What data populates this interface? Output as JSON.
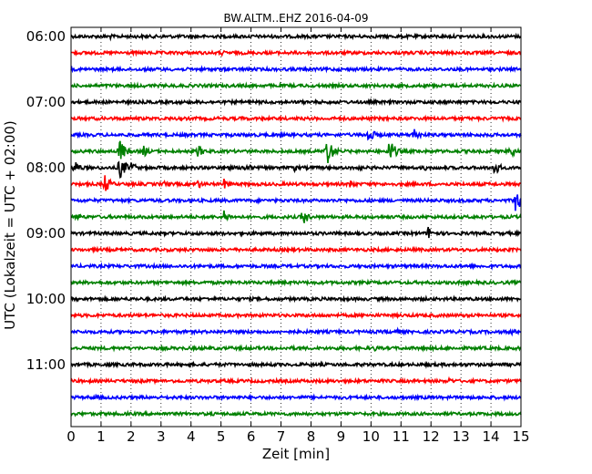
{
  "chart_data": {
    "type": "line",
    "title": "BW.ALTM..EHZ 2016-04-09",
    "xlabel": "Zeit  [min]",
    "ylabel": "UTC (Lokalzeit = UTC + 02:00)",
    "xlim": [
      0,
      15
    ],
    "x_ticks": [
      "0",
      "1",
      "2",
      "3",
      "4",
      "5",
      "6",
      "7",
      "8",
      "9",
      "10",
      "11",
      "12",
      "13",
      "14",
      "15"
    ],
    "y_tick_labels": [
      "06:00",
      "07:00",
      "08:00",
      "09:00",
      "10:00",
      "11:00"
    ],
    "grid": "vertical dotted",
    "trace_interval_minutes": 15,
    "colors": [
      "#000000",
      "#ff0000",
      "#0000ff",
      "#008000"
    ],
    "traces": [
      {
        "start": "06:00",
        "events": [
          {
            "t": 1.3,
            "amp": 0.25
          }
        ]
      },
      {
        "start": "06:15",
        "events": [
          {
            "t": 5.0,
            "amp": 0.3
          }
        ]
      },
      {
        "start": "06:30",
        "events": []
      },
      {
        "start": "06:45",
        "events": []
      },
      {
        "start": "07:00",
        "events": []
      },
      {
        "start": "07:15",
        "events": [
          {
            "t": 5.7,
            "amp": 0.2
          }
        ]
      },
      {
        "start": "07:30",
        "events": [
          {
            "t": 9.9,
            "amp": 0.9
          },
          {
            "t": 11.4,
            "amp": 0.8
          }
        ]
      },
      {
        "start": "07:45",
        "events": [
          {
            "t": 1.6,
            "amp": 1.3
          },
          {
            "t": 2.4,
            "amp": 0.6
          },
          {
            "t": 4.2,
            "amp": 0.7
          },
          {
            "t": 8.5,
            "amp": 1.6
          },
          {
            "t": 10.6,
            "amp": 1.3
          },
          {
            "t": 14.6,
            "amp": 0.8
          }
        ]
      },
      {
        "start": "08:00",
        "events": [
          {
            "t": 0.1,
            "amp": 0.8
          },
          {
            "t": 1.6,
            "amp": 1.3
          },
          {
            "t": 2.0,
            "amp": 0.6
          },
          {
            "t": 5.1,
            "amp": 0.5
          },
          {
            "t": 5.8,
            "amp": 0.6
          },
          {
            "t": 7.4,
            "amp": 0.45
          },
          {
            "t": 9.5,
            "amp": 0.45
          },
          {
            "t": 11.8,
            "amp": 0.3
          },
          {
            "t": 14.1,
            "amp": 0.8
          }
        ]
      },
      {
        "start": "08:15",
        "events": [
          {
            "t": 1.1,
            "amp": 1.0
          },
          {
            "t": 3.1,
            "amp": 0.4
          },
          {
            "t": 4.2,
            "amp": 0.5
          },
          {
            "t": 5.1,
            "amp": 0.5
          },
          {
            "t": 9.3,
            "amp": 0.5
          }
        ]
      },
      {
        "start": "08:30",
        "events": [
          {
            "t": 11.8,
            "amp": 0.2
          },
          {
            "t": 14.8,
            "amp": 1.3
          }
        ]
      },
      {
        "start": "08:45",
        "events": [
          {
            "t": 0.2,
            "amp": 0.4
          },
          {
            "t": 5.1,
            "amp": 0.6
          },
          {
            "t": 7.7,
            "amp": 0.9
          }
        ]
      },
      {
        "start": "09:00",
        "events": [
          {
            "t": 5.2,
            "amp": 0.2
          },
          {
            "t": 10.7,
            "amp": 0.2
          },
          {
            "t": 11.9,
            "amp": 0.7
          }
        ]
      },
      {
        "start": "09:15",
        "events": []
      },
      {
        "start": "09:30",
        "events": []
      },
      {
        "start": "09:45",
        "events": []
      },
      {
        "start": "10:00",
        "events": []
      },
      {
        "start": "10:15",
        "events": []
      },
      {
        "start": "10:30",
        "events": [
          {
            "t": 10.8,
            "amp": 0.4
          },
          {
            "t": 14.7,
            "amp": 0.35
          }
        ]
      },
      {
        "start": "10:45",
        "events": [
          {
            "t": 7.3,
            "amp": 0.25
          },
          {
            "t": 10.1,
            "amp": 0.35
          }
        ]
      },
      {
        "start": "11:00",
        "events": []
      },
      {
        "start": "11:15",
        "events": [
          {
            "t": 12.6,
            "amp": 0.35
          }
        ]
      },
      {
        "start": "11:30",
        "events": [
          {
            "t": 0.8,
            "amp": 0.3
          }
        ]
      },
      {
        "start": "11:45",
        "events": []
      }
    ]
  }
}
